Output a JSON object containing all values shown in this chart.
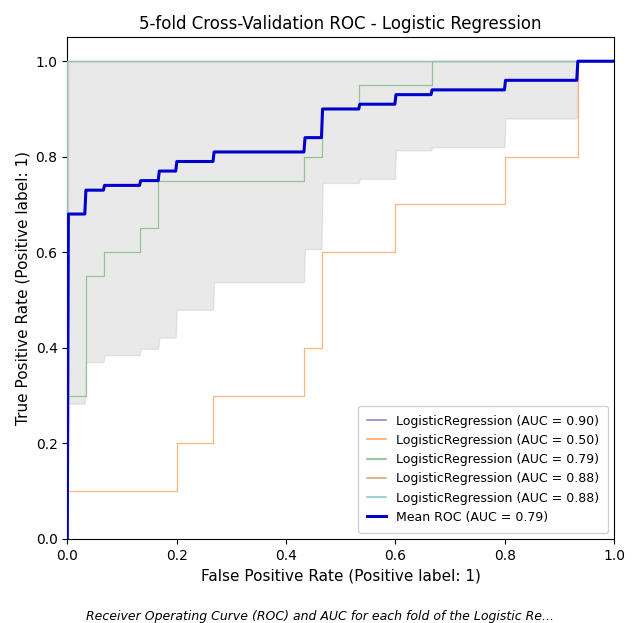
{
  "title": "5-fold Cross-Validation ROC - Logistic Regression",
  "xlabel": "False Positive Rate (Positive label: 1)",
  "ylabel": "True Positive Rate (Positive label: 1)",
  "caption": "Receiver Operating Curve (ROC) and AUC for each fold of the Logistic Re...",
  "fold_colors": [
    "#8888cc",
    "#ffaa66",
    "#88bb88",
    "#ddaa77",
    "#88cccc"
  ],
  "fold_aucs": [
    0.9,
    0.5,
    0.79,
    0.88,
    0.88
  ],
  "mean_auc": 0.79,
  "mean_color": "#0000cc",
  "shade_color": "#aaaaaa",
  "shade_alpha": 0.25,
  "figsize": [
    6.4,
    6.23
  ],
  "dpi": 100
}
